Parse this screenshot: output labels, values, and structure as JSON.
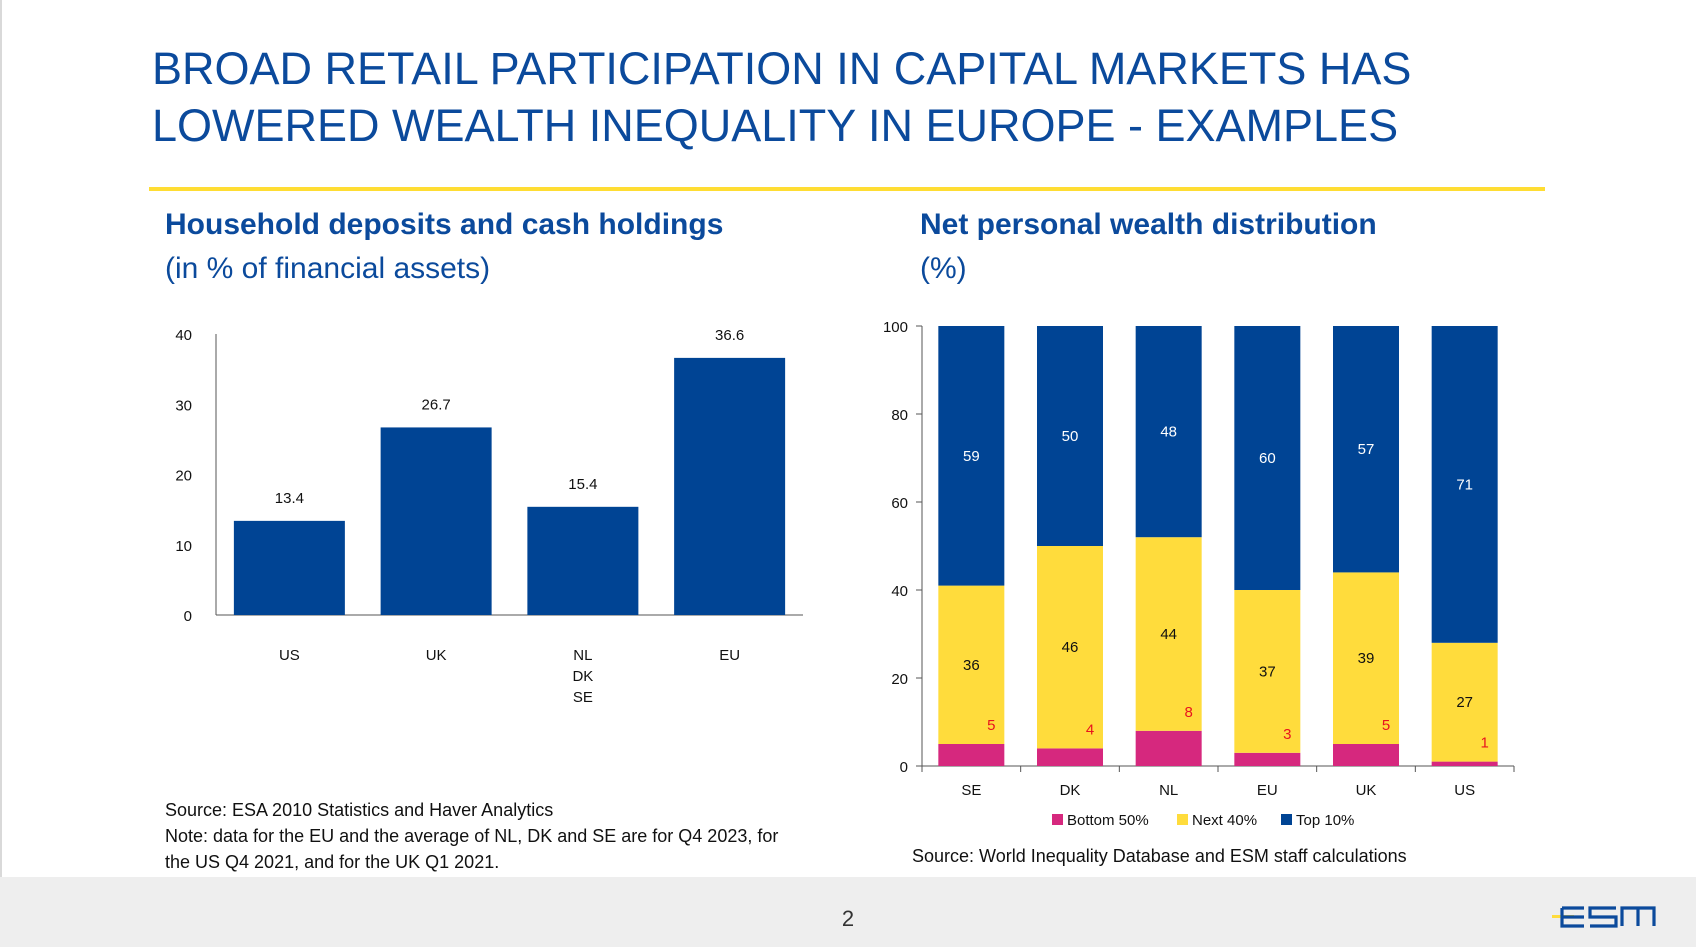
{
  "slide": {
    "title_line1": "BROAD RETAIL PARTICIPATION IN CAPITAL MARKETS HAS",
    "title_line2": "LOWERED WEALTH INEQUALITY IN EUROPE - EXAMPLES",
    "page_number": "2",
    "logo_text": "esm"
  },
  "left": {
    "title": "Household deposits and cash holdings",
    "subtitle": "(in % of financial assets)",
    "source": "Source: ESA 2010 Statistics and Haver Analytics",
    "note_line1": "Note: data for the EU and the average of NL, DK and SE are for Q4 2023, for",
    "note_line2": "the US Q4 2021, and for the UK Q1 2021."
  },
  "right": {
    "title": "Net personal wealth distribution",
    "subtitle": "(%)",
    "source": "Source: World Inequality Database and ESM staff calculations"
  },
  "colors": {
    "navy": "#004494",
    "yellow": "#FFDC3C",
    "pink": "#D6287E",
    "title_blue": "#0B4A9C",
    "rule_yellow": "#FFDD33",
    "label_red": "#E8141E"
  },
  "chart_data": [
    {
      "type": "bar",
      "title": "Household deposits and cash holdings",
      "subtitle": "(in % of financial assets)",
      "categories": [
        [
          "US"
        ],
        [
          "UK"
        ],
        [
          "NL",
          "DK",
          "SE"
        ],
        [
          "EU"
        ]
      ],
      "values": [
        13.4,
        26.7,
        15.4,
        36.6
      ],
      "value_labels": [
        "13.4",
        "26.7",
        "15.4",
        "36.6"
      ],
      "ylim": [
        0,
        40
      ],
      "yticks": [
        0,
        10,
        20,
        30,
        40
      ],
      "xlabel": "",
      "ylabel": "",
      "grid": false
    },
    {
      "type": "bar",
      "stacked": true,
      "title": "Net personal wealth distribution",
      "subtitle": "(%)",
      "categories": [
        "SE",
        "DK",
        "NL",
        "EU",
        "UK",
        "US"
      ],
      "series": [
        {
          "name": "Bottom 50%",
          "color": "#D6287E",
          "values": [
            5,
            4,
            8,
            3,
            5,
            1
          ],
          "labels": [
            "5",
            "4",
            "8",
            "3",
            "5",
            "1"
          ]
        },
        {
          "name": "Next 40%",
          "color": "#FFDC3C",
          "values": [
            36,
            46,
            44,
            37,
            39,
            27
          ],
          "labels": [
            "36",
            "46",
            "44",
            "37",
            "39",
            "27"
          ]
        },
        {
          "name": "Top 10%",
          "color": "#004494",
          "values": [
            59,
            50,
            48,
            60,
            57,
            71
          ],
          "labels": [
            "59",
            "50",
            "48",
            "60",
            "57",
            "71"
          ]
        }
      ],
      "ylim": [
        0,
        100
      ],
      "yticks": [
        0,
        20,
        40,
        60,
        80,
        100
      ],
      "legend": "bottom",
      "grid": false
    }
  ]
}
